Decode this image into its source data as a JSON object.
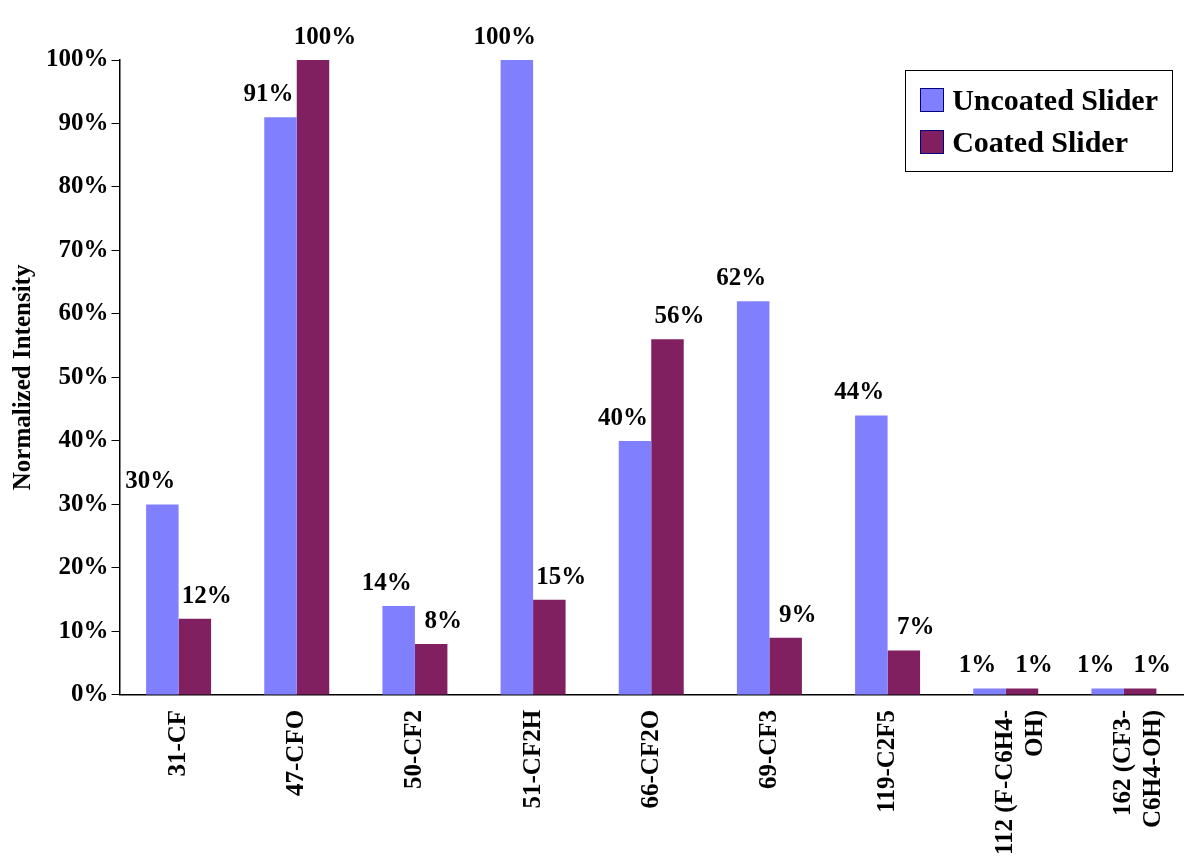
{
  "chart_data": {
    "type": "bar",
    "ylabel": "Normalized Intensity",
    "categories": [
      "31-CF",
      "47-CFO",
      "50-CF2",
      "51-CF2H",
      "66-CF2O",
      "69-CF3",
      "119-C2F5",
      "112 (F-C6H4-OH)",
      "162 (CF3-C6H4-OH)"
    ],
    "series": [
      {
        "name": "Uncoated Slider",
        "color": "#8080ff",
        "values": [
          30,
          91,
          14,
          100,
          40,
          62,
          44,
          1,
          1
        ],
        "value_labels": [
          "30%",
          "91%",
          "14%",
          "100%",
          "40%",
          "62%",
          "44%",
          "1%",
          "1%"
        ]
      },
      {
        "name": "Coated Slider",
        "color": "#802060",
        "values": [
          12,
          100,
          8,
          15,
          56,
          9,
          7,
          1,
          1
        ],
        "value_labels": [
          "12%",
          "100%",
          "8%",
          "15%",
          "56%",
          "9%",
          "7%",
          "1%",
          "1%"
        ]
      }
    ],
    "ylim": [
      0,
      100
    ],
    "yticks": [
      {
        "value": 0,
        "label": "0%"
      },
      {
        "value": 10,
        "label": "10%"
      },
      {
        "value": 20,
        "label": "20%"
      },
      {
        "value": 30,
        "label": "30%"
      },
      {
        "value": 40,
        "label": "40%"
      },
      {
        "value": 50,
        "label": "50%"
      },
      {
        "value": 60,
        "label": "60%"
      },
      {
        "value": 70,
        "label": "70%"
      },
      {
        "value": 80,
        "label": "80%"
      },
      {
        "value": 90,
        "label": "90%"
      },
      {
        "value": 100,
        "label": "100%"
      }
    ],
    "grid": false,
    "legend": "top right"
  }
}
